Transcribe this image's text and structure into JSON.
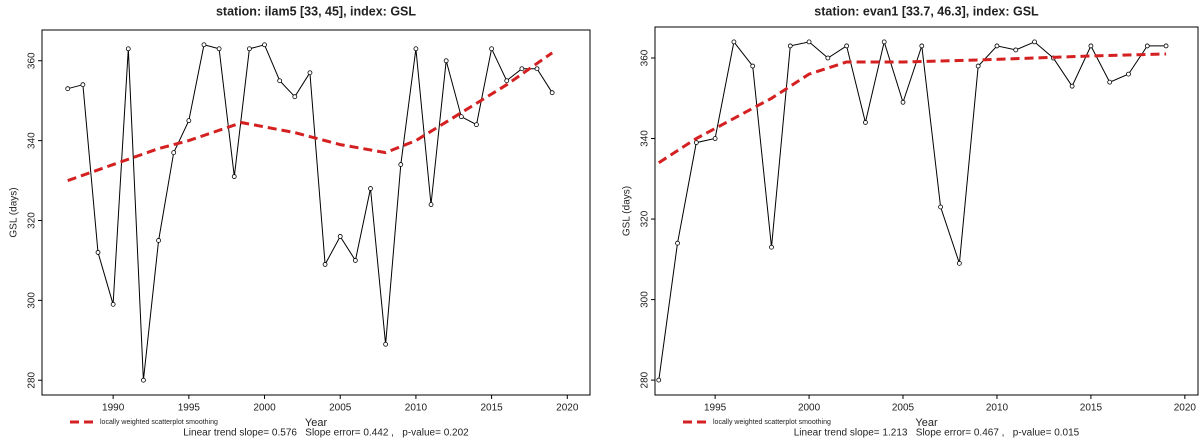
{
  "chart_data": [
    {
      "type": "line",
      "title": "station: ilam5 [33, 45], index: GSL",
      "x_label": "Year",
      "y_label": "GSL (days)",
      "x": [
        1987,
        1988,
        1989,
        1990,
        1991,
        1992,
        1993,
        1994,
        1995,
        1996,
        1997,
        1998,
        1999,
        2000,
        2001,
        2002,
        2003,
        2004,
        2005,
        2006,
        2007,
        2008,
        2009,
        2010,
        2011,
        2012,
        2013,
        2014,
        2015,
        2016,
        2017,
        2018,
        2019
      ],
      "series": [
        {
          "color": "#000000",
          "values": [
            353,
            354,
            312,
            299,
            363,
            280,
            315,
            337,
            345,
            364,
            363,
            331,
            363,
            364,
            355,
            351,
            357,
            309,
            316,
            310,
            328,
            289,
            334,
            363,
            324,
            360,
            346,
            344,
            363,
            355,
            358,
            358,
            352
          ]
        },
        {
          "name": "locally weighted scatterplot smoothing",
          "color": "#d42020",
          "dashed": true,
          "x": [
            1987,
            1990,
            1993,
            1995,
            1998.5,
            2002,
            2005,
            2008,
            2010,
            2013,
            2016,
            2019
          ],
          "values": [
            330,
            334,
            338,
            340,
            344.5,
            342,
            339,
            337,
            340,
            347,
            354,
            362
          ]
        }
      ],
      "xlim": [
        1985.3,
        2021.5
      ],
      "xticks": [
        1990,
        1995,
        2000,
        2005,
        2010,
        2015,
        2020
      ],
      "ylim": [
        276.3,
        367.7
      ],
      "yticks": [
        280,
        300,
        320,
        340,
        360
      ],
      "annotation": "Linear trend slope= 0.576   Slope error= 0.442 ,   p-value= 0.202"
    },
    {
      "type": "line",
      "title": "station: evan1 [33.7, 46.3], index: GSL",
      "x_label": "Year",
      "y_label": "GSL (days)",
      "x": [
        1992,
        1993,
        1994,
        1995,
        1996,
        1997,
        1998,
        1999,
        2000,
        2001,
        2002,
        2003,
        2004,
        2005,
        2006,
        2007,
        2008,
        2009,
        2010,
        2011,
        2012,
        2013,
        2014,
        2015,
        2016,
        2017,
        2018,
        2019
      ],
      "series": [
        {
          "color": "#000000",
          "values": [
            280,
            314,
            339,
            340,
            364,
            358,
            313,
            363,
            364,
            360,
            363,
            344,
            364,
            349,
            363,
            323,
            309,
            358,
            363,
            362,
            364,
            360,
            353,
            363,
            354,
            356,
            363,
            363
          ]
        },
        {
          "name": "locally weighted scatterplot smoothing",
          "color": "#d42020",
          "dashed": true,
          "x": [
            1992,
            1994,
            1996,
            1998,
            2000,
            2002,
            2005,
            2009,
            2012,
            2015,
            2019
          ],
          "values": [
            334,
            340,
            345,
            350,
            356,
            359,
            359,
            359.5,
            360,
            360.5,
            361
          ]
        }
      ],
      "xlim": [
        1991.8,
        2020.7
      ],
      "xticks": [
        1995,
        2000,
        2005,
        2010,
        2015,
        2020
      ],
      "ylim": [
        276.3,
        367.7
      ],
      "yticks": [
        280,
        300,
        320,
        340,
        360
      ],
      "annotation": "Linear trend slope= 1.213   Slope error= 0.467 ,   p-value= 0.015"
    }
  ]
}
